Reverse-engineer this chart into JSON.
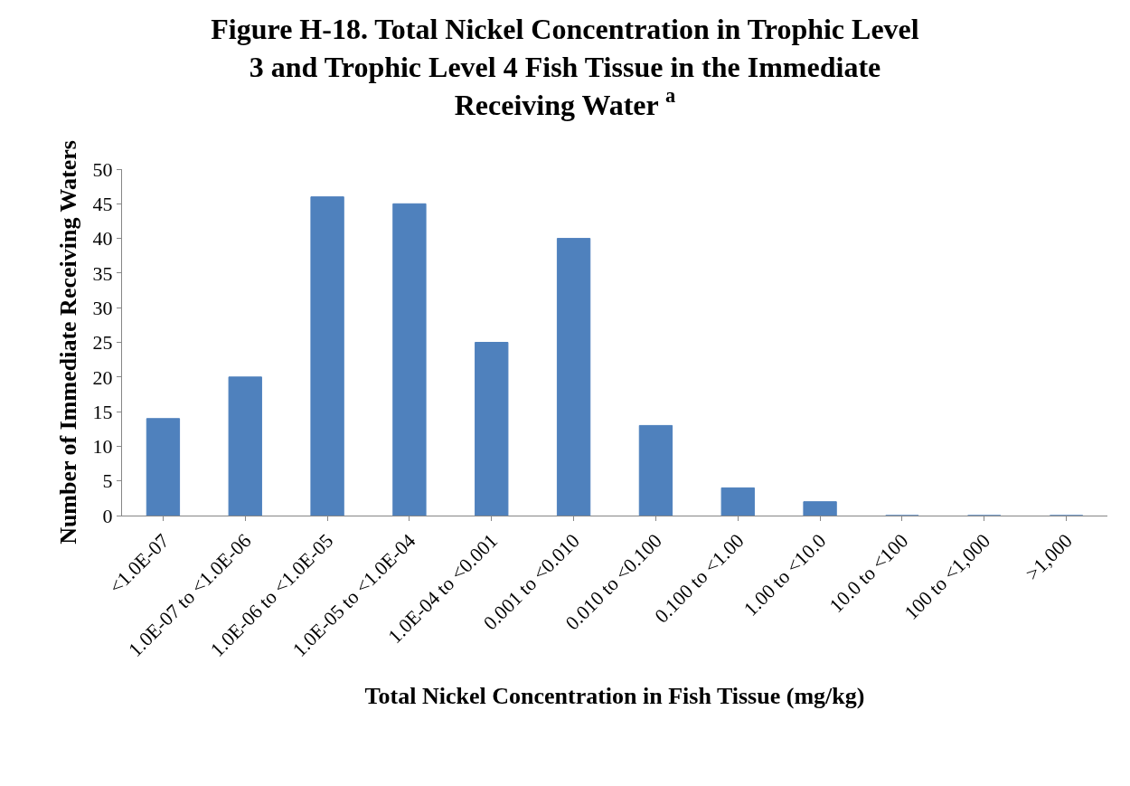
{
  "chart_data": {
    "type": "bar",
    "title": "Figure H-18. Total Nickel Concentration in Trophic Level 3 and Trophic Level 4 Fish Tissue in the Immediate Receiving Water $^{a}$",
    "xlabel": "Total Nickel Concentration in Fish Tissue (mg/kg)",
    "ylabel": "Number of Immediate Receiving Waters",
    "categories": [
      "<1.0E-07",
      "1.0E-07 to <1.0E-06",
      "1.0E-06 to <1.0E-05",
      "1.0E-05 to <1.0E-04",
      "1.0E-04 to <0.001",
      "0.001 to <0.010",
      "0.010 to <0.100",
      "0.100 to <1.00",
      "1.00 to <10.0",
      "10.0 to <100",
      "100 to <1,000",
      ">1,000"
    ],
    "values": [
      14,
      20,
      46,
      45,
      25,
      40,
      13,
      4,
      2,
      0,
      0,
      0
    ],
    "color": "#4f81bd",
    "ylim": [
      0,
      50
    ],
    "yticks": [
      0,
      5,
      10,
      15,
      20,
      25,
      30,
      35,
      40,
      45,
      50
    ]
  }
}
